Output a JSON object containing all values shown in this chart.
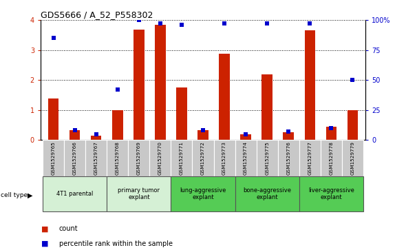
{
  "title": "GDS5666 / A_52_P558302",
  "samples": [
    "GSM1529765",
    "GSM1529766",
    "GSM1529767",
    "GSM1529768",
    "GSM1529769",
    "GSM1529770",
    "GSM1529771",
    "GSM1529772",
    "GSM1529773",
    "GSM1529774",
    "GSM1529775",
    "GSM1529776",
    "GSM1529777",
    "GSM1529778",
    "GSM1529779"
  ],
  "counts": [
    1.38,
    0.33,
    0.15,
    1.0,
    3.67,
    3.85,
    1.75,
    0.33,
    2.87,
    0.2,
    2.18,
    0.27,
    3.65,
    0.45,
    1.0
  ],
  "percentiles": [
    85,
    8,
    5,
    42,
    100,
    97,
    96,
    8,
    97,
    5,
    97,
    7,
    97,
    10,
    50
  ],
  "bar_color": "#cc2200",
  "dot_color": "#0000cc",
  "ylim_left": [
    0,
    4
  ],
  "ylim_right": [
    0,
    100
  ],
  "yticks_left": [
    0,
    1,
    2,
    3,
    4
  ],
  "yticks_right": [
    0,
    25,
    50,
    75,
    100
  ],
  "yticklabels_right": [
    "0",
    "25",
    "50",
    "75",
    "100%"
  ],
  "groups": [
    {
      "label": "4T1 parental",
      "start": 0,
      "end": 3,
      "color": "#d5f0d5"
    },
    {
      "label": "primary tumor\nexplant",
      "start": 3,
      "end": 6,
      "color": "#d5f0d5"
    },
    {
      "label": "lung-aggressive\nexplant",
      "start": 6,
      "end": 9,
      "color": "#55cc55"
    },
    {
      "label": "bone-aggressive\nexplant",
      "start": 9,
      "end": 12,
      "color": "#55cc55"
    },
    {
      "label": "liver-aggressive\nexplant",
      "start": 12,
      "end": 15,
      "color": "#55cc55"
    }
  ],
  "tick_label_bg": "#c8c8c8",
  "cell_type_label": "cell type",
  "legend_count_label": "count",
  "legend_pct_label": "percentile rank within the sample",
  "bar_width": 0.5,
  "dot_size": 22
}
